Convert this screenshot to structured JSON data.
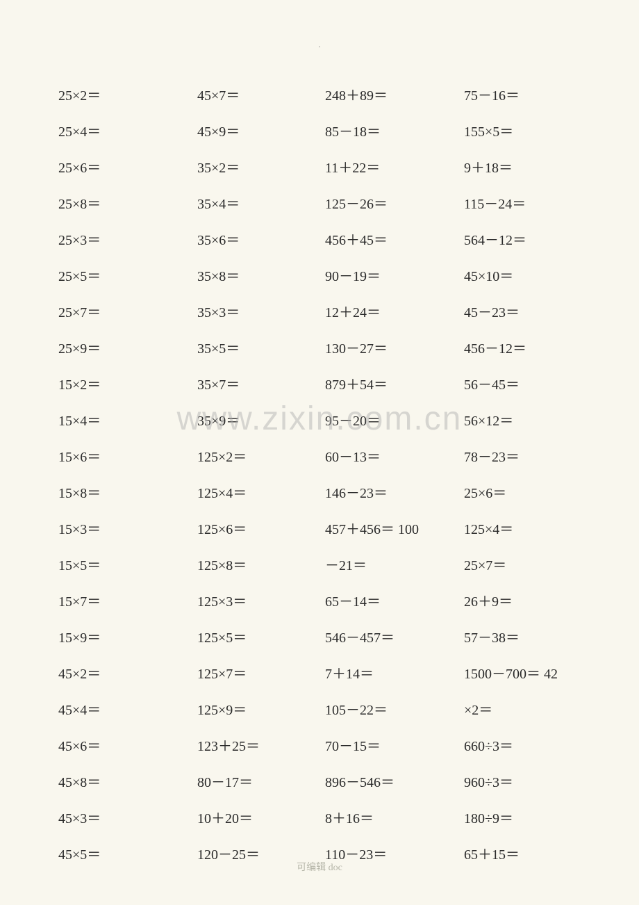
{
  "page": {
    "background_color": "#f9f7ee",
    "text_color": "#2a2a2a",
    "font_size_pt": 15,
    "watermark_text": "www.zixin.com.cn",
    "watermark_color": "rgba(170,170,170,0.45)",
    "footer_text": "可编辑 doc",
    "footer_color": "#b5b5a8",
    "top_marker": "."
  },
  "math_table": {
    "type": "table",
    "columns": 4,
    "rows": 22,
    "cells": {
      "c1": [
        "25×2＝",
        "25×4＝",
        "25×6＝",
        "25×8＝",
        "25×3＝",
        "25×5＝",
        "25×7＝",
        "25×9＝",
        "15×2＝",
        "15×4＝",
        "15×6＝",
        "15×8＝",
        "15×3＝",
        "15×5＝",
        "15×7＝",
        "15×9＝",
        "45×2＝",
        "45×4＝",
        "45×6＝",
        "45×8＝",
        "45×3＝",
        "45×5＝"
      ],
      "c2": [
        "45×7＝",
        "45×9＝",
        "35×2＝",
        "35×4＝",
        "35×6＝",
        "35×8＝",
        "35×3＝",
        "35×5＝",
        "35×7＝",
        "35×9＝",
        "125×2＝",
        "125×4＝",
        "125×6＝",
        "125×8＝",
        "125×3＝",
        "125×5＝",
        "125×7＝",
        "125×9＝",
        "123＋25＝",
        "80－17＝",
        "10＋20＝",
        "120－25＝"
      ],
      "c3": [
        "248＋89＝",
        "85－18＝",
        "11＋22＝",
        "125－26＝",
        "456＋45＝",
        "90－19＝",
        "12＋24＝",
        "130－27＝",
        "879＋54＝",
        "95－20＝",
        "60－13＝",
        "146－23＝",
        "457＋456＝  100",
        "－21＝",
        "65－14＝",
        "546－457＝",
        "7＋14＝",
        "105－22＝",
        "70－15＝",
        "896－546＝",
        "8＋16＝",
        "110－23＝"
      ],
      "c4": [
        "75－16＝",
        "155×5＝",
        "9＋18＝",
        "115－24＝",
        "564－12＝",
        "45×10＝",
        "45－23＝",
        "456－12＝",
        "56－45＝",
        "56×12＝",
        "78－23＝",
        "25×6＝",
        "125×4＝",
        "25×7＝",
        "26＋9＝",
        "57－38＝",
        "1500－700＝  42",
        "×2＝",
        "660÷3＝",
        "960÷3＝",
        "180÷9＝",
        "65＋15＝"
      ]
    }
  }
}
